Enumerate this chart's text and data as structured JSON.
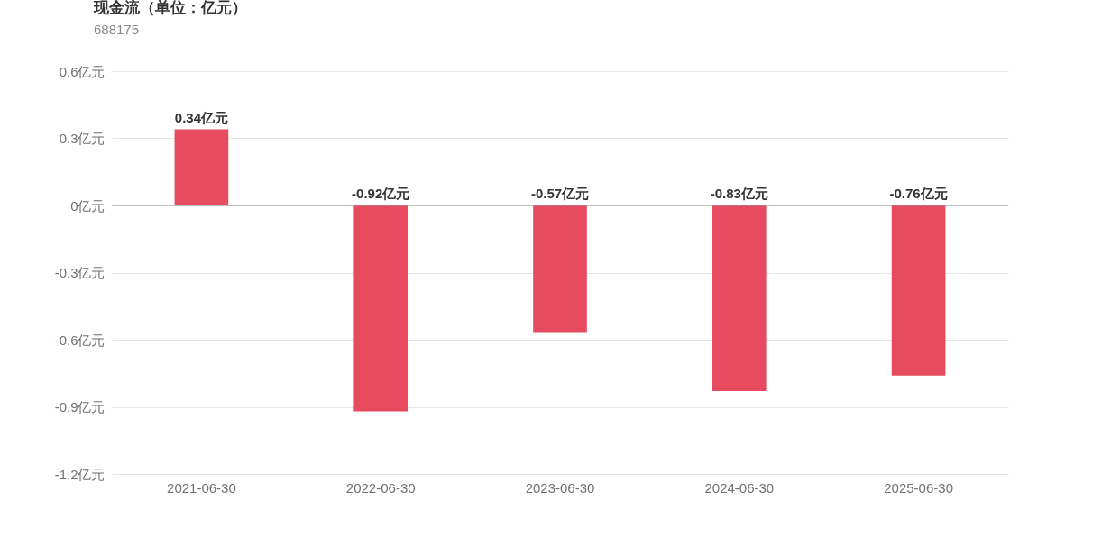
{
  "chart_data": {
    "type": "bar",
    "title": "现金流（单位：亿元）",
    "subtitle": "688175",
    "categories": [
      "2021-06-30",
      "2022-06-30",
      "2023-06-30",
      "2024-06-30",
      "2025-06-30"
    ],
    "values": [
      0.34,
      -0.92,
      -0.57,
      -0.83,
      -0.76
    ],
    "value_labels": [
      "0.34亿元",
      "-0.92亿元",
      "-0.57亿元",
      "-0.83亿元",
      "-0.76亿元"
    ],
    "color": "#e64b5f",
    "ylim": [
      -1.2,
      0.6
    ],
    "yticks": [
      {
        "value": 0.6,
        "label": "0.6亿元"
      },
      {
        "value": 0.3,
        "label": "0.3亿元"
      },
      {
        "value": 0,
        "label": "0亿元"
      },
      {
        "value": -0.3,
        "label": "-0.3亿元"
      },
      {
        "value": -0.6,
        "label": "-0.6亿元"
      },
      {
        "value": -0.9,
        "label": "-0.9亿元"
      },
      {
        "value": -1.2,
        "label": "-1.2亿元"
      }
    ],
    "ref_lines": [
      {
        "axis": "y",
        "value": 0,
        "color": "#999999"
      }
    ],
    "grid": "y"
  }
}
